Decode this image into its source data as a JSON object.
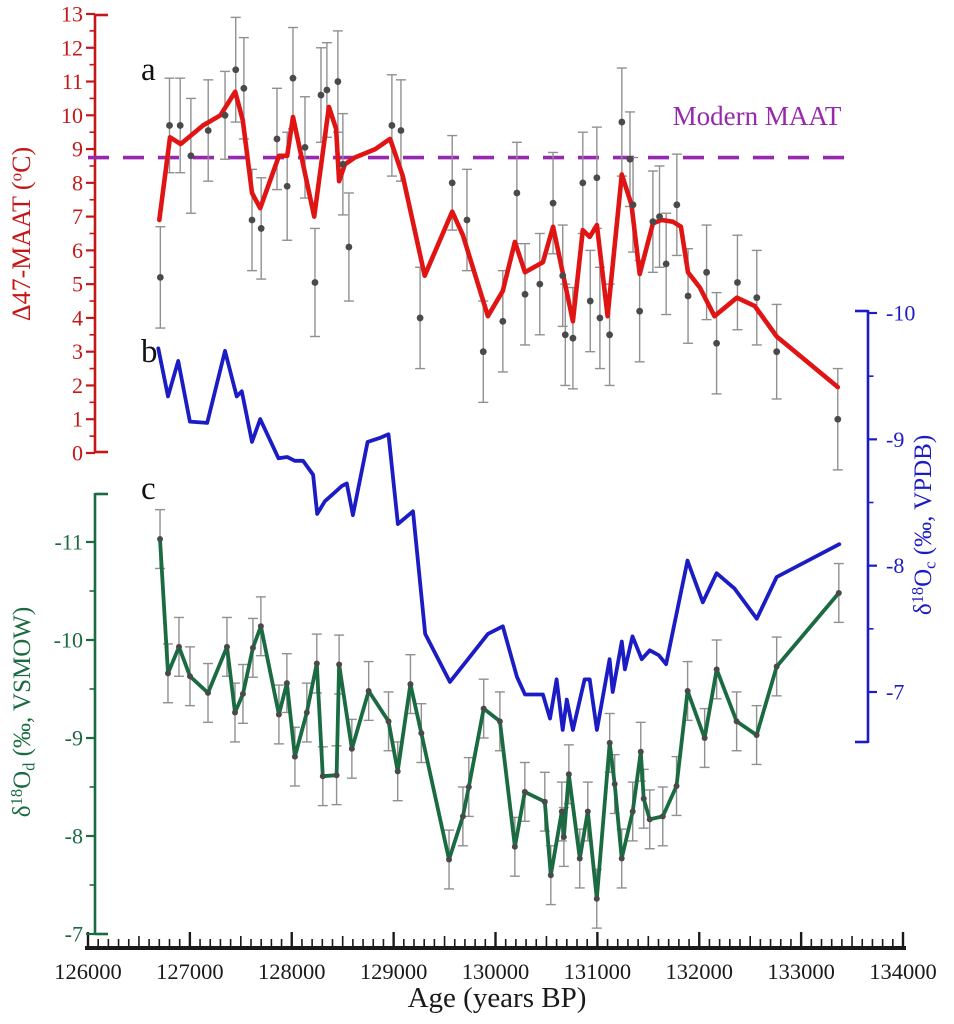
{
  "figure": {
    "panel_letters": [
      "a",
      "b",
      "c"
    ],
    "annotation": {
      "text": "Modern MAAT",
      "value_deg_c": 8.75
    }
  },
  "colors": {
    "red": "#e11414",
    "red_axis": "#c41818",
    "blue": "#1c1cc4",
    "green": "#1b6b42",
    "purple": "#9629ad",
    "error_bar": "#909090",
    "dot": "#4a4a4a",
    "axis_black": "#1a1a1a"
  },
  "chart_data": {
    "type": "line",
    "xlabel": "Age (years BP)",
    "x_axis": {
      "min": 126000,
      "max": 134000,
      "major_step": 1000,
      "medium_step": 500,
      "minor_step": 100,
      "tick_labels": [
        "126000",
        "127000",
        "128000",
        "129000",
        "130000",
        "131000",
        "132000",
        "133000",
        "134000"
      ]
    },
    "panels": [
      {
        "id": "a",
        "letter": "a",
        "ylabel_parts": [
          {
            "t": "Δ47-MAAT ("
          },
          {
            "t": "o",
            "sup": true
          },
          {
            "t": "C)"
          }
        ],
        "y_axis": {
          "min": 0,
          "max": 13,
          "major_step": 1,
          "minor_step": 0.5,
          "tick_labels": [
            "0",
            "1",
            "2",
            "3",
            "4",
            "5",
            "6",
            "7",
            "8",
            "9",
            "10",
            "11",
            "12",
            "13"
          ]
        },
        "annotation": {
          "text": "Modern MAAT",
          "value": 8.75
        },
        "line_points": [
          [
            126700,
            6.9
          ],
          [
            126805,
            9.35
          ],
          [
            126910,
            9.15
          ],
          [
            127130,
            9.7
          ],
          [
            127300,
            10.0
          ],
          [
            127445,
            10.7
          ],
          [
            127520,
            9.85
          ],
          [
            127610,
            7.7
          ],
          [
            127690,
            7.25
          ],
          [
            127875,
            8.8
          ],
          [
            127955,
            8.8
          ],
          [
            128012,
            9.95
          ],
          [
            128220,
            7.0
          ],
          [
            128365,
            10.25
          ],
          [
            128435,
            9.6
          ],
          [
            128465,
            8.05
          ],
          [
            128522,
            8.55
          ],
          [
            128620,
            8.75
          ],
          [
            128820,
            9.0
          ],
          [
            128965,
            9.3
          ],
          [
            129090,
            8.2
          ],
          [
            129305,
            5.25
          ],
          [
            129575,
            7.15
          ],
          [
            129680,
            6.45
          ],
          [
            129925,
            4.05
          ],
          [
            130072,
            4.8
          ],
          [
            130190,
            6.25
          ],
          [
            130290,
            5.35
          ],
          [
            130465,
            5.65
          ],
          [
            130565,
            6.7
          ],
          [
            130760,
            3.9
          ],
          [
            130857,
            6.6
          ],
          [
            130925,
            6.4
          ],
          [
            130995,
            6.75
          ],
          [
            131100,
            4.05
          ],
          [
            131240,
            8.25
          ],
          [
            131335,
            7.35
          ],
          [
            131415,
            5.3
          ],
          [
            131545,
            6.8
          ],
          [
            131630,
            6.9
          ],
          [
            131740,
            6.85
          ],
          [
            131820,
            6.7
          ],
          [
            131890,
            5.35
          ],
          [
            132005,
            4.9
          ],
          [
            132150,
            4.05
          ],
          [
            132370,
            4.6
          ],
          [
            132545,
            4.35
          ],
          [
            132760,
            3.45
          ],
          [
            133360,
            1.95
          ]
        ],
        "scatter_points": [
          [
            126710,
            5.2,
            1.5
          ],
          [
            126800,
            9.7,
            1.4
          ],
          [
            126905,
            9.7,
            1.4
          ],
          [
            127010,
            8.8,
            1.7
          ],
          [
            127180,
            9.55,
            1.5
          ],
          [
            127345,
            10.0,
            1.3
          ],
          [
            127450,
            11.35,
            1.55
          ],
          [
            127530,
            10.8,
            1.5
          ],
          [
            127610,
            6.9,
            1.5
          ],
          [
            127700,
            6.65,
            1.5
          ],
          [
            127855,
            9.3,
            1.5
          ],
          [
            127955,
            7.9,
            1.6
          ],
          [
            128012,
            11.1,
            1.5
          ],
          [
            128130,
            9.05,
            1.5
          ],
          [
            128228,
            5.05,
            1.6
          ],
          [
            128287,
            10.6,
            1.4
          ],
          [
            128345,
            10.75,
            1.4
          ],
          [
            128453,
            11.0,
            1.5
          ],
          [
            128502,
            8.55,
            1.5
          ],
          [
            128561,
            6.1,
            1.6
          ],
          [
            128983,
            9.7,
            1.5
          ],
          [
            129072,
            9.55,
            1.5
          ],
          [
            129260,
            4.0,
            1.5
          ],
          [
            129575,
            8.0,
            1.4
          ],
          [
            129720,
            6.9,
            1.5
          ],
          [
            129880,
            3.0,
            1.5
          ],
          [
            130072,
            3.9,
            1.5
          ],
          [
            130210,
            7.7,
            1.5
          ],
          [
            130290,
            4.7,
            1.5
          ],
          [
            130435,
            5.0,
            1.5
          ],
          [
            130565,
            7.4,
            1.5
          ],
          [
            130660,
            5.25,
            1.5
          ],
          [
            130685,
            3.5,
            1.5
          ],
          [
            130760,
            3.4,
            1.5
          ],
          [
            130857,
            8.0,
            1.5
          ],
          [
            130930,
            4.5,
            1.5
          ],
          [
            130995,
            8.15,
            1.5
          ],
          [
            131025,
            4.0,
            1.5
          ],
          [
            131120,
            3.5,
            1.5
          ],
          [
            131240,
            9.8,
            1.6
          ],
          [
            131320,
            8.7,
            1.4
          ],
          [
            131350,
            7.35,
            1.4
          ],
          [
            131415,
            4.2,
            1.5
          ],
          [
            131545,
            6.85,
            1.5
          ],
          [
            131610,
            7.0,
            1.5
          ],
          [
            131675,
            5.6,
            1.5
          ],
          [
            131780,
            7.35,
            1.5
          ],
          [
            131890,
            4.65,
            1.4
          ],
          [
            132072,
            5.35,
            1.4
          ],
          [
            132170,
            3.25,
            1.5
          ],
          [
            132375,
            5.05,
            1.4
          ],
          [
            132565,
            4.6,
            1.4
          ],
          [
            132760,
            3.0,
            1.4
          ],
          [
            133360,
            1.0,
            1.5
          ]
        ]
      },
      {
        "id": "b",
        "letter": "b",
        "ylabel_parts": [
          {
            "t": "δ"
          },
          {
            "t": "18",
            "sup": true
          },
          {
            "t": "O"
          },
          {
            "t": "c",
            "sub": true
          },
          {
            "t": " (‰, VPDB)"
          }
        ],
        "y_axis": {
          "min": -10,
          "max": -7,
          "major_step": 1,
          "minor_step": 0.5,
          "inverted": true,
          "tick_labels": [
            "-10",
            "-9",
            "-8",
            "-7"
          ]
        },
        "line_points": [
          [
            126690,
            -9.72
          ],
          [
            126785,
            -9.34
          ],
          [
            126885,
            -9.62
          ],
          [
            127000,
            -9.14
          ],
          [
            127170,
            -9.13
          ],
          [
            127345,
            -9.7
          ],
          [
            127460,
            -9.34
          ],
          [
            127510,
            -9.38
          ],
          [
            127610,
            -8.98
          ],
          [
            127690,
            -9.16
          ],
          [
            127870,
            -8.85
          ],
          [
            127955,
            -8.86
          ],
          [
            128030,
            -8.83
          ],
          [
            128110,
            -8.83
          ],
          [
            128210,
            -8.72
          ],
          [
            128250,
            -8.41
          ],
          [
            128325,
            -8.51
          ],
          [
            128395,
            -8.56
          ],
          [
            128490,
            -8.63
          ],
          [
            128540,
            -8.65
          ],
          [
            128600,
            -8.4
          ],
          [
            128745,
            -8.98
          ],
          [
            128860,
            -9.01
          ],
          [
            128950,
            -9.04
          ],
          [
            129042,
            -8.33
          ],
          [
            129190,
            -8.43
          ],
          [
            129310,
            -7.46
          ],
          [
            129552,
            -7.08
          ],
          [
            129730,
            -7.26
          ],
          [
            129925,
            -7.46
          ],
          [
            130072,
            -7.52
          ],
          [
            130210,
            -7.12
          ],
          [
            130290,
            -6.98
          ],
          [
            130465,
            -6.98
          ],
          [
            130535,
            -6.79
          ],
          [
            130600,
            -7.1
          ],
          [
            130660,
            -6.7
          ],
          [
            130700,
            -6.94
          ],
          [
            130760,
            -6.7
          ],
          [
            130875,
            -7.1
          ],
          [
            130925,
            -7.1
          ],
          [
            130995,
            -6.7
          ],
          [
            131120,
            -7.26
          ],
          [
            131150,
            -7.0
          ],
          [
            131240,
            -7.4
          ],
          [
            131270,
            -7.18
          ],
          [
            131345,
            -7.44
          ],
          [
            131435,
            -7.26
          ],
          [
            131515,
            -7.33
          ],
          [
            131605,
            -7.29
          ],
          [
            131675,
            -7.22
          ],
          [
            131885,
            -8.04
          ],
          [
            132035,
            -7.71
          ],
          [
            132170,
            -7.94
          ],
          [
            132345,
            -7.82
          ],
          [
            132565,
            -7.58
          ],
          [
            132760,
            -7.91
          ],
          [
            133375,
            -8.17
          ]
        ]
      },
      {
        "id": "c",
        "letter": "c",
        "ylabel_parts": [
          {
            "t": "δ"
          },
          {
            "t": "18",
            "sup": true
          },
          {
            "t": "O"
          },
          {
            "t": "d",
            "sub": true
          },
          {
            "t": " (‰, VSMOW)"
          }
        ],
        "y_axis": {
          "min": -11,
          "max": -7,
          "major_step": 1,
          "minor_step": 0.5,
          "inverted": true,
          "tick_labels": [
            "-11",
            "-10",
            "-9",
            "-8",
            "-7"
          ]
        },
        "error": 0.3,
        "line_points": [
          [
            126707,
            -11.03
          ],
          [
            126785,
            -9.66
          ],
          [
            126893,
            -9.93
          ],
          [
            127001,
            -9.63
          ],
          [
            127178,
            -9.46
          ],
          [
            127364,
            -9.93
          ],
          [
            127443,
            -9.26
          ],
          [
            127521,
            -9.45
          ],
          [
            127619,
            -9.92
          ],
          [
            127697,
            -10.14
          ],
          [
            127874,
            -9.24
          ],
          [
            127952,
            -9.56
          ],
          [
            128031,
            -8.81
          ],
          [
            128148,
            -9.26
          ],
          [
            128246,
            -9.76
          ],
          [
            128305,
            -8.61
          ],
          [
            128440,
            -8.62
          ],
          [
            128465,
            -9.75
          ],
          [
            128590,
            -8.89
          ],
          [
            128755,
            -9.48
          ],
          [
            128950,
            -9.17
          ],
          [
            129040,
            -8.66
          ],
          [
            129165,
            -9.55
          ],
          [
            129272,
            -9.05
          ],
          [
            129544,
            -7.76
          ],
          [
            129680,
            -8.2
          ],
          [
            129738,
            -8.5
          ],
          [
            129884,
            -9.3
          ],
          [
            130043,
            -9.17
          ],
          [
            130190,
            -7.89
          ],
          [
            130288,
            -8.45
          ],
          [
            130484,
            -8.35
          ],
          [
            130543,
            -7.6
          ],
          [
            130651,
            -8.25
          ],
          [
            130671,
            -7.99
          ],
          [
            130720,
            -8.63
          ],
          [
            130827,
            -7.77
          ],
          [
            130906,
            -8.25
          ],
          [
            130994,
            -7.36
          ],
          [
            131121,
            -8.95
          ],
          [
            131170,
            -8.53
          ],
          [
            131239,
            -7.77
          ],
          [
            131347,
            -8.25
          ],
          [
            131426,
            -8.86
          ],
          [
            131455,
            -8.38
          ],
          [
            131514,
            -8.17
          ],
          [
            131642,
            -8.2
          ],
          [
            131777,
            -8.51
          ],
          [
            131886,
            -9.48
          ],
          [
            132053,
            -9.0
          ],
          [
            132171,
            -9.7
          ],
          [
            132367,
            -9.17
          ],
          [
            132563,
            -9.03
          ],
          [
            132760,
            -9.73
          ],
          [
            133370,
            -10.48
          ]
        ]
      }
    ]
  }
}
